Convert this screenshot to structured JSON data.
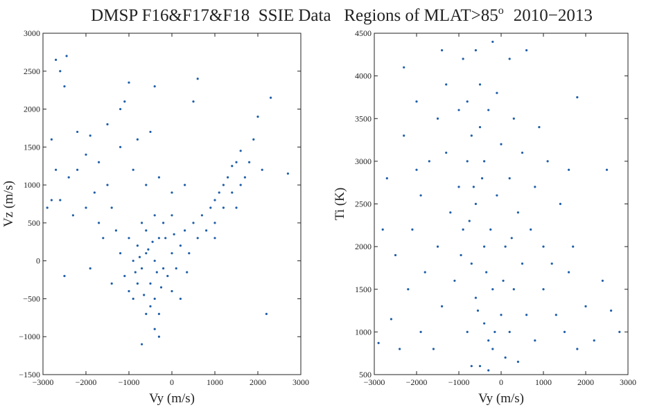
{
  "suptitle": {
    "text": "DMSP F16&F17&F18  SSIE Data   Regions of MLAT>85",
    "superscript": "o",
    "suffix": "2010−2013"
  },
  "chart_data": [
    {
      "type": "scatter",
      "xlabel": "Vy (m/s)",
      "ylabel": "Vz (m/s)",
      "color": "#1f5fa8",
      "xlim": [
        -3000,
        3000
      ],
      "ylim": [
        -1500,
        3000
      ],
      "xticks": [
        {
          "value": -3000,
          "label": "−3000"
        },
        {
          "value": -2000,
          "label": "−2000"
        },
        {
          "value": -1000,
          "label": "−1000"
        },
        0,
        1000,
        2000,
        3000
      ],
      "yticks": [
        {
          "value": -1500,
          "label": "−1500"
        },
        {
          "value": -1000,
          "label": "−1000"
        },
        {
          "value": -500,
          "label": "−500"
        },
        0,
        500,
        1000,
        1500,
        2000,
        2500,
        3000
      ],
      "x": [
        -400,
        -600,
        -200,
        -800,
        0,
        -500,
        -300,
        -700,
        -100,
        200,
        -900,
        -600,
        -400,
        -200,
        100,
        300,
        -1000,
        -1200,
        -800,
        -500,
        -300,
        0,
        400,
        500,
        -1100,
        -700,
        -400,
        0,
        600,
        -600,
        -400,
        -700,
        -300,
        -1300,
        -1400,
        200,
        700,
        800,
        -900,
        -150,
        -550,
        -250,
        -850,
        50,
        350,
        -1000,
        -650,
        -450,
        -350,
        -750,
        900,
        1000,
        1100,
        1200,
        1300,
        1400,
        1500,
        1600,
        1700,
        1800,
        1200,
        1000,
        1400,
        1600,
        1900,
        2000,
        2300,
        600,
        2200,
        1000,
        1500,
        2100,
        2700,
        -1500,
        -1800,
        -1700,
        -2000,
        -2200,
        -2400,
        -2600,
        -2700,
        -2600,
        -2500,
        -2450,
        -2800,
        -2200,
        -1900,
        -1100,
        -1000,
        -1200,
        -800,
        -400,
        -500,
        -1500,
        -2000,
        -2300,
        -1700,
        -1600,
        -2800,
        -2500,
        -1900,
        -1400,
        -1200,
        -900,
        -600,
        -300,
        0,
        300,
        500,
        -2700,
        -2900
      ],
      "y": [
        0,
        100,
        -100,
        200,
        100,
        -300,
        300,
        -100,
        -200,
        200,
        0,
        400,
        -500,
        500,
        -100,
        400,
        300,
        100,
        -300,
        -600,
        -700,
        -400,
        100,
        500,
        -200,
        500,
        600,
        600,
        300,
        -700,
        -900,
        -1100,
        -1000,
        400,
        700,
        -500,
        600,
        400,
        -500,
        300,
        150,
        -350,
        -150,
        350,
        -150,
        -400,
        -450,
        250,
        -150,
        50,
        700,
        800,
        900,
        1000,
        1100,
        1250,
        1300,
        1450,
        1100,
        1300,
        700,
        500,
        900,
        1000,
        1600,
        1900,
        2150,
        2400,
        -700,
        300,
        700,
        1200,
        1150,
        1000,
        900,
        1300,
        1400,
        1200,
        1100,
        800,
        2650,
        2500,
        2300,
        2700,
        1600,
        1700,
        1650,
        2100,
        2350,
        2000,
        1600,
        2300,
        1700,
        1800,
        700,
        600,
        500,
        300,
        800,
        -200,
        -100,
        -300,
        1500,
        1200,
        1000,
        1100,
        900,
        1000,
        2100,
        1200,
        700
      ]
    },
    {
      "type": "scatter",
      "xlabel": "Vy (m/s)",
      "ylabel": "Ti (K)",
      "color": "#1f5fa8",
      "xlim": [
        -3000,
        3000
      ],
      "ylim": [
        500,
        4500
      ],
      "xticks": [
        {
          "value": -3000,
          "label": "−3000"
        },
        {
          "value": -2000,
          "label": "−2000"
        },
        {
          "value": -1000,
          "label": "−1000"
        },
        0,
        1000,
        2000,
        3000
      ],
      "yticks": [
        500,
        1000,
        1500,
        2000,
        2500,
        3000,
        3500,
        4000,
        4500
      ],
      "x": [
        -400,
        -600,
        -200,
        -800,
        0,
        -500,
        -300,
        -700,
        -100,
        200,
        -900,
        -600,
        -400,
        -200,
        100,
        300,
        -1000,
        -800,
        -500,
        0,
        -300,
        400,
        500,
        -1100,
        -700,
        -400,
        200,
        600,
        700,
        800,
        1000,
        1200,
        1500,
        1700,
        1800,
        1400,
        1100,
        900,
        2000,
        2200,
        2500,
        2600,
        1800,
        1600,
        600,
        200,
        -200,
        -600,
        -900,
        -1300,
        -1500,
        -1700,
        -1900,
        -2100,
        -2300,
        -2000,
        -2500,
        -2700,
        -2800,
        -2600,
        -2400,
        -2200,
        -1900,
        -1600,
        -1400,
        -1200,
        -1300,
        -1000,
        -1500,
        -1800,
        -2000,
        -2300,
        -1400,
        -700,
        -300,
        100,
        400,
        1300,
        1000,
        800,
        500,
        300,
        -100,
        -500,
        -800,
        -250,
        -650,
        -350,
        -550,
        -150,
        -750,
        -450,
        50,
        250,
        -950,
        1600,
        2400,
        2800,
        -2900
      ],
      "y": [
        2000,
        2500,
        1500,
        3000,
        1200,
        3400,
        900,
        1800,
        2600,
        1000,
        2200,
        1400,
        3000,
        800,
        2000,
        1500,
        2700,
        1000,
        600,
        3200,
        3600,
        2400,
        1800,
        1600,
        3300,
        1100,
        2800,
        1200,
        2200,
        900,
        1500,
        1800,
        1000,
        2000,
        800,
        2500,
        3000,
        3400,
        1300,
        900,
        2900,
        1250,
        3750,
        2900,
        4300,
        4200,
        4400,
        4300,
        4200,
        3900,
        3500,
        3000,
        2600,
        2200,
        4100,
        3700,
        1900,
        2800,
        2200,
        1150,
        800,
        1500,
        1000,
        800,
        1300,
        2400,
        3100,
        3600,
        2000,
        1700,
        2900,
        3300,
        4300,
        600,
        550,
        700,
        650,
        1200,
        2000,
        2700,
        3100,
        3500,
        3800,
        3900,
        3700,
        2200,
        2700,
        1700,
        1250,
        1000,
        2300,
        2800,
        1600,
        2100,
        1900,
        1700,
        1600,
        1000,
        870
      ]
    }
  ]
}
